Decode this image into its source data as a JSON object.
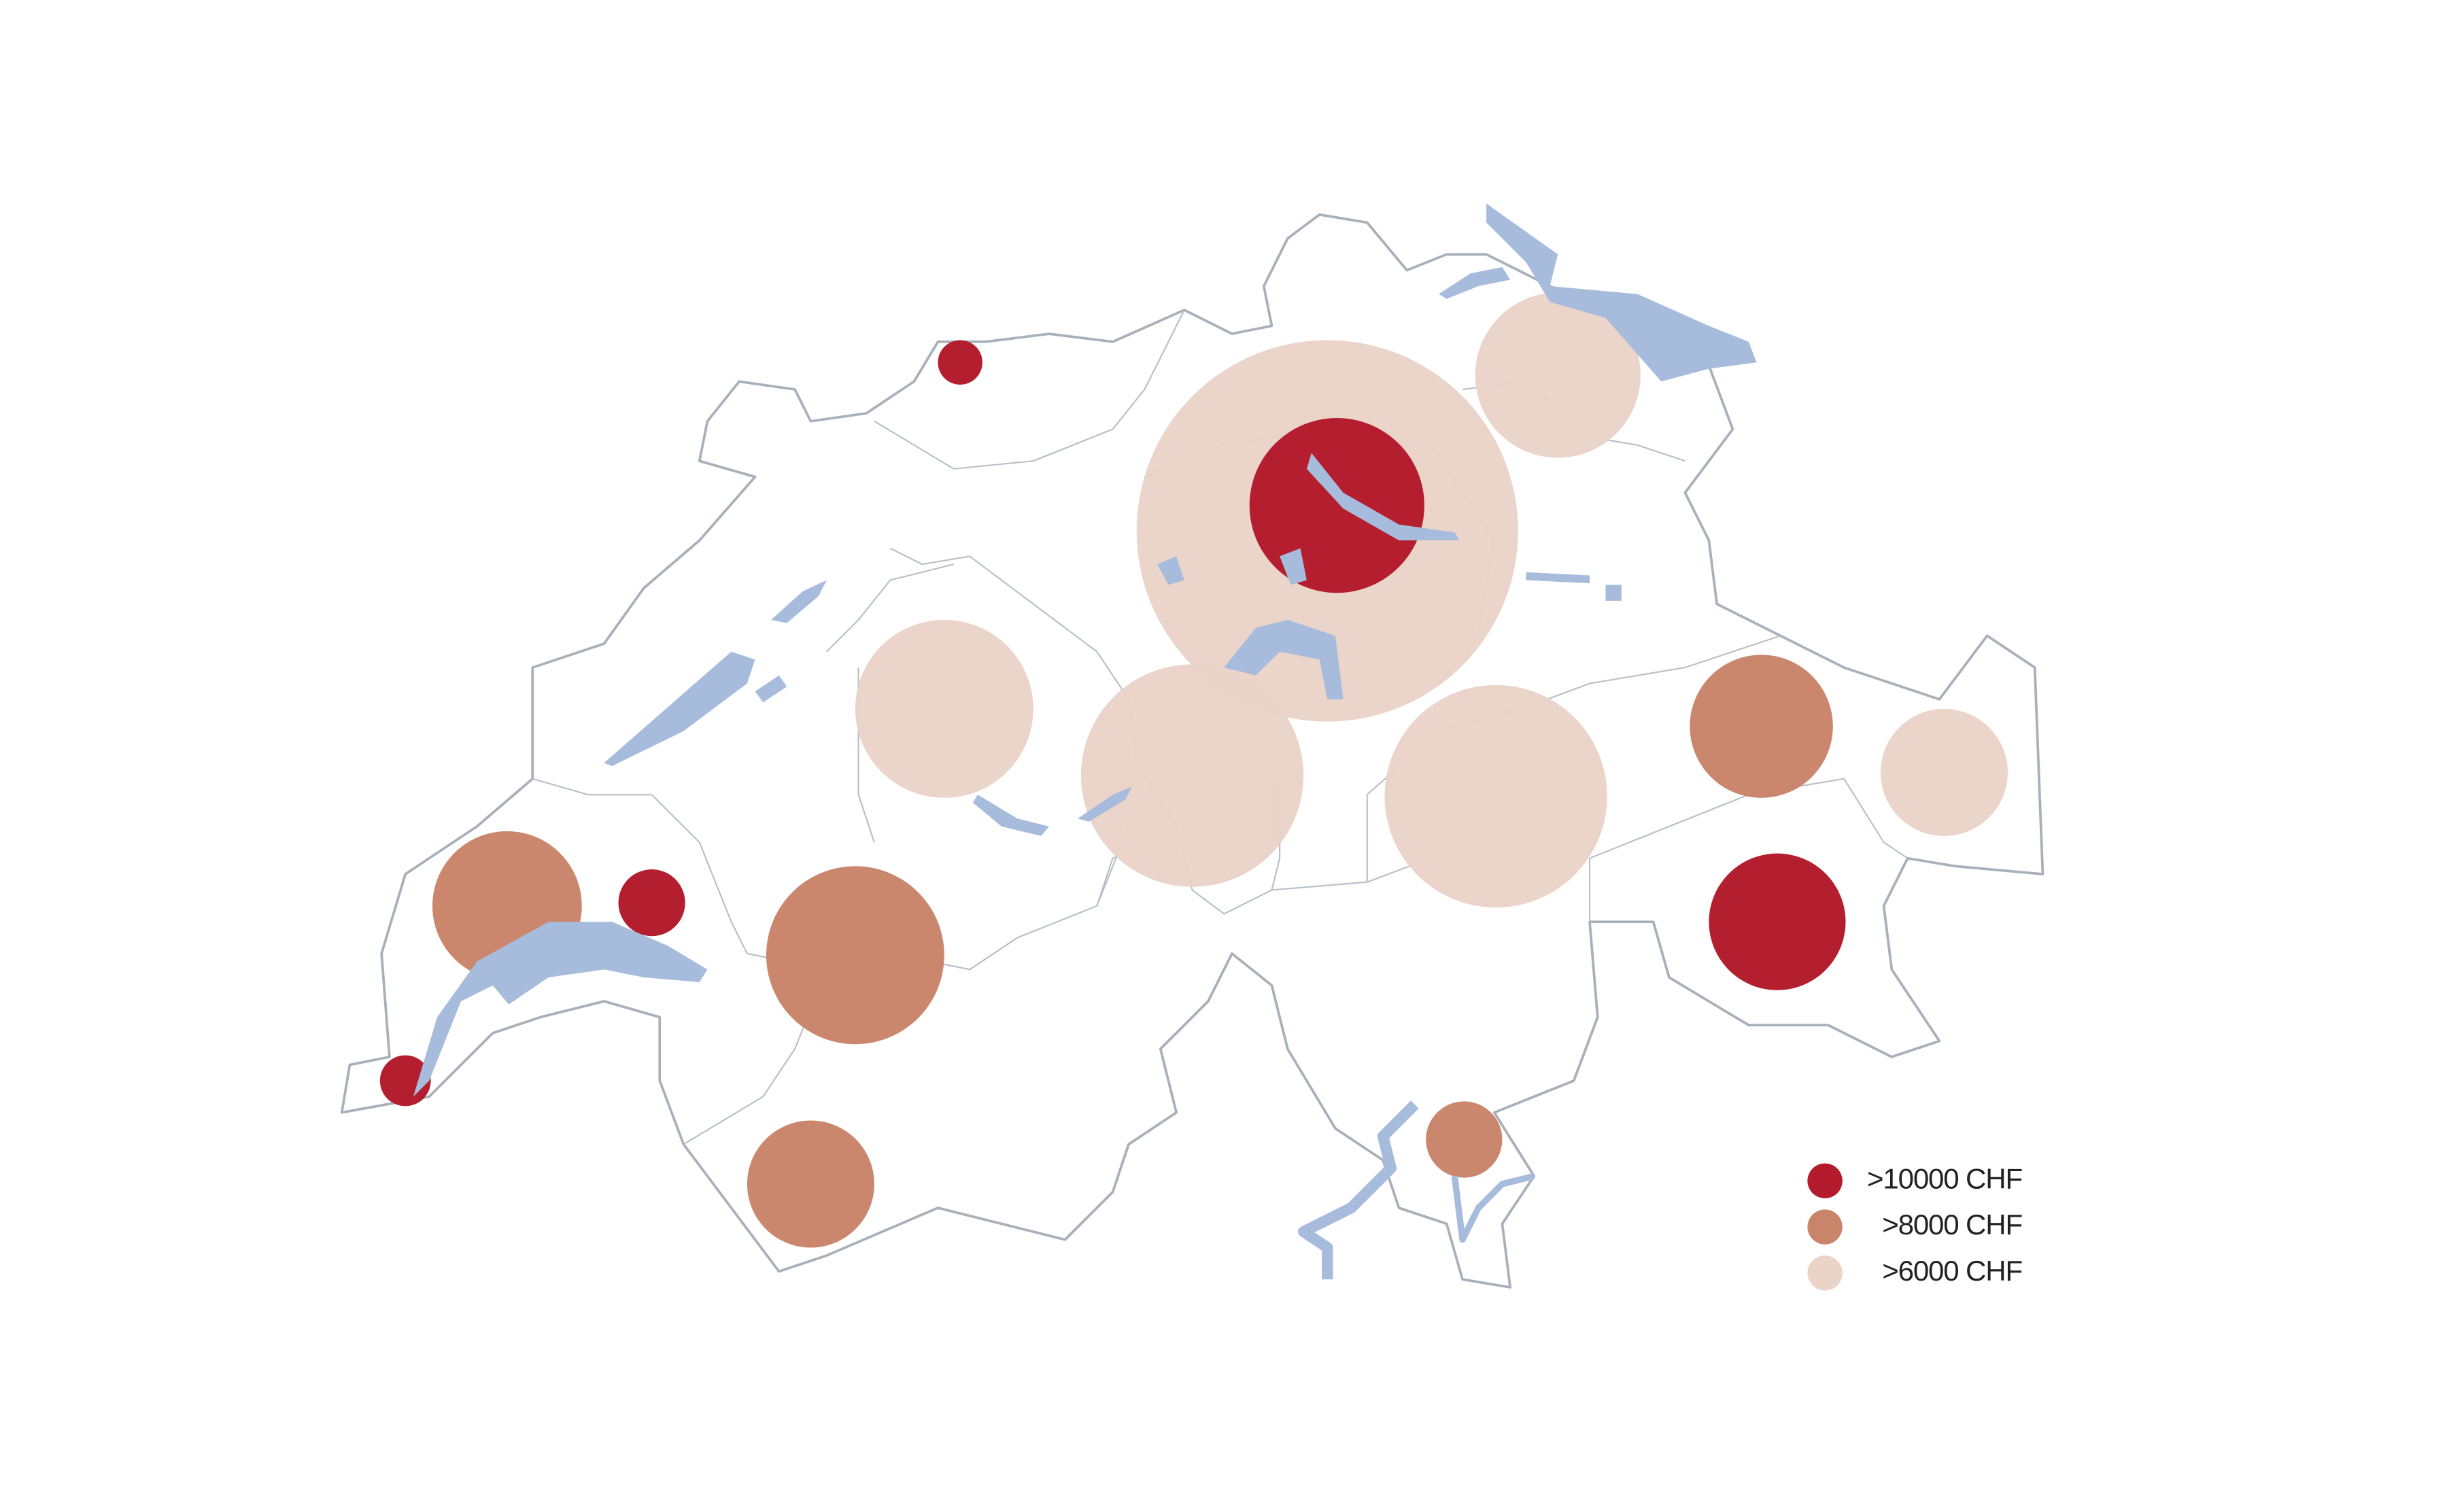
{
  "legend": {
    "items": [
      {
        "label": ">10000 CHF",
        "color": "#b31b2c"
      },
      {
        "label": ">8000 CHF",
        "color": "#c9856a"
      },
      {
        "label": ">6000 CHF",
        "color": "#ead3c7"
      }
    ]
  }
}
